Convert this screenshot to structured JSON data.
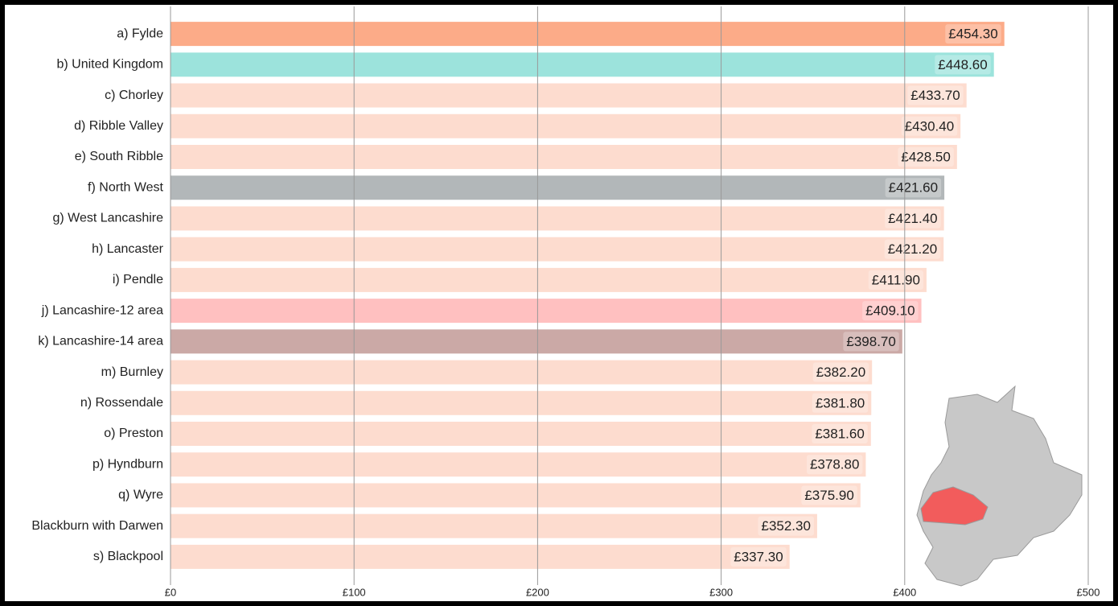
{
  "chart_data": {
    "type": "bar",
    "orientation": "horizontal",
    "categories": [
      "a) Fylde",
      "b) United Kingdom",
      "c) Chorley",
      "d) Ribble Valley",
      "e) South Ribble",
      "f) North West",
      "g) West Lancashire",
      "h) Lancaster",
      "i) Pendle",
      "j) Lancashire-12 area",
      "k) Lancashire-14 area",
      "m) Burnley",
      "n) Rossendale",
      "o) Preston",
      "p) Hyndburn",
      "q) Wyre",
      "Blackburn with Darwen",
      "s) Blackpool"
    ],
    "values": [
      454.3,
      448.6,
      433.7,
      430.4,
      428.5,
      421.6,
      421.4,
      421.2,
      411.9,
      409.1,
      398.7,
      382.2,
      381.8,
      381.6,
      378.8,
      375.9,
      352.3,
      337.3
    ],
    "value_labels": [
      "£454.30",
      "£448.60",
      "£433.70",
      "£430.40",
      "£428.50",
      "£421.60",
      "£421.40",
      "£421.20",
      "£411.90",
      "£409.10",
      "£398.70",
      "£382.20",
      "£381.80",
      "£381.60",
      "£378.80",
      "£375.90",
      "£352.30",
      "£337.30"
    ],
    "colors": [
      "#fcab88",
      "#9ce3dc",
      "#fddccf",
      "#fddccf",
      "#fddccf",
      "#b2b7b9",
      "#fddccf",
      "#fddccf",
      "#fddccf",
      "#ffc0c0",
      "#cba9a6",
      "#fddccf",
      "#fddccf",
      "#fddccf",
      "#fddccf",
      "#fddccf",
      "#fddccf",
      "#fddccf"
    ],
    "xlim": [
      0,
      500
    ],
    "xticks": [
      {
        "value": 0,
        "label": "£0"
      },
      {
        "value": 100,
        "label": "£100"
      },
      {
        "value": 200,
        "label": "£200"
      },
      {
        "value": 300,
        "label": "£300"
      },
      {
        "value": 400,
        "label": "£400"
      },
      {
        "value": 500,
        "label": "£500"
      }
    ],
    "grid": true
  }
}
